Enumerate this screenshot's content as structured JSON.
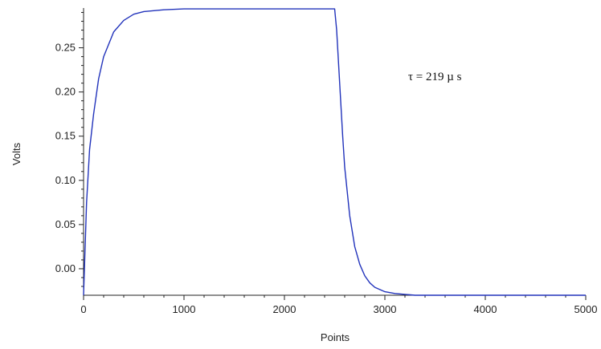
{
  "chart_data": {
    "type": "line",
    "title": "",
    "xlabel": "Points",
    "ylabel": "Volts",
    "xlim": [
      0,
      5000
    ],
    "ylim": [
      -0.03,
      0.295
    ],
    "x_ticks": [
      0,
      1000,
      2000,
      3000,
      4000,
      5000
    ],
    "x_tick_labels": [
      "0",
      "1000",
      "2000",
      "3000",
      "4000",
      "5000"
    ],
    "y_ticks": [
      0.0,
      0.05,
      0.1,
      0.15,
      0.2,
      0.25
    ],
    "y_tick_labels": [
      "0.00",
      "0.05",
      "0.10",
      "0.15",
      "0.20",
      "0.25"
    ],
    "grid": false,
    "legend": "none",
    "annotation": "τ = 219 µ s",
    "series": [
      {
        "color": "#2233bb",
        "x": [
          0,
          30,
          60,
          100,
          150,
          200,
          300,
          400,
          500,
          600,
          800,
          1000,
          1500,
          2000,
          2480,
          2500,
          2520,
          2540,
          2560,
          2580,
          2600,
          2650,
          2700,
          2750,
          2800,
          2850,
          2900,
          3000,
          3100,
          3200,
          3300,
          3500,
          4000,
          5000
        ],
        "y": [
          -0.03,
          0.075,
          0.135,
          0.175,
          0.215,
          0.24,
          0.268,
          0.281,
          0.288,
          0.291,
          0.293,
          0.294,
          0.294,
          0.294,
          0.294,
          0.294,
          0.27,
          0.23,
          0.19,
          0.15,
          0.115,
          0.06,
          0.025,
          0.005,
          -0.008,
          -0.016,
          -0.021,
          -0.026,
          -0.028,
          -0.029,
          -0.03,
          -0.03,
          -0.03,
          -0.03
        ]
      }
    ]
  }
}
